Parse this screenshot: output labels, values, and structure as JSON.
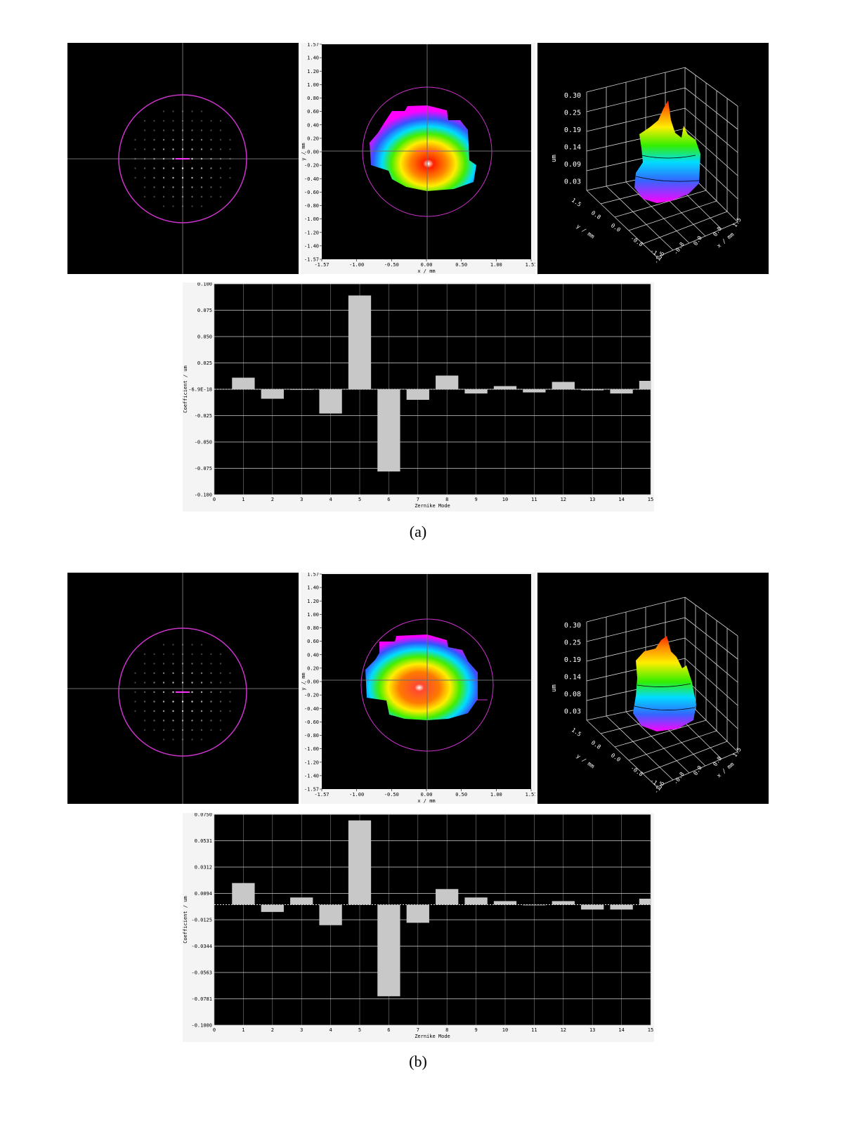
{
  "figure_labels": [
    "(a)",
    "(b)"
  ],
  "colors": {
    "pupil_circle": "#cc33cc",
    "crosshair": "#6e6e6e",
    "bar_fill": "#c8c8c8",
    "plot_bg": "#000000",
    "grid": "#bdbdbd"
  },
  "intensity_map": {
    "x_label": "x / mm",
    "y_label": "y / mm",
    "x_ticks": [
      "-1.57",
      "-1.00",
      "-0.50",
      "0.00",
      "0.50",
      "1.00",
      "1.57"
    ],
    "y_ticks": [
      "1.57",
      "1.40",
      "1.20",
      "1.00",
      "0.80",
      "0.60",
      "0.40",
      "0.20",
      "-0.00",
      "-0.20",
      "-0.40",
      "-0.60",
      "-0.80",
      "-1.00",
      "-1.20",
      "-1.40",
      "-1.57"
    ]
  },
  "surface_3d": {
    "z_label": "um",
    "y_label": "y / mm",
    "x_label": "x / mm",
    "y_ticks": [
      "1.5",
      "0.8",
      "0.0",
      "-0.8",
      "-1.5"
    ],
    "x_ticks": [
      "-1.5",
      "-0.8",
      "0.0",
      "0.8",
      "1.5"
    ],
    "z_ticks_a": [
      "0.30",
      "0.25",
      "0.19",
      "0.14",
      "0.09",
      "0.03"
    ],
    "z_ticks_b": [
      "0.30",
      "0.25",
      "0.19",
      "0.14",
      "0.08",
      "0.03"
    ]
  },
  "chart_data": [
    {
      "type": "bar",
      "panel": "(a)",
      "xlabel": "Zernike Mode",
      "ylabel": "Coefficient / um",
      "categories": [
        "1",
        "2",
        "3",
        "4",
        "5",
        "6",
        "7",
        "8",
        "9",
        "10",
        "11",
        "12",
        "13",
        "14",
        "15"
      ],
      "x_ticks": [
        "0",
        "1",
        "2",
        "3",
        "4",
        "5",
        "6",
        "7",
        "8",
        "9",
        "10",
        "11",
        "12",
        "13",
        "14",
        "15"
      ],
      "y_ticks": [
        "0.100",
        "0.075",
        "0.050",
        "0.025",
        "-6.9E-18",
        "-0.025",
        "-0.050",
        "-0.075",
        "-0.100"
      ],
      "ylim": [
        -0.1,
        0.1
      ],
      "values": [
        0.011,
        -0.009,
        0.0,
        -0.023,
        0.089,
        -0.078,
        -0.01,
        0.013,
        -0.004,
        0.003,
        -0.003,
        0.007,
        -0.001,
        -0.004,
        0.008
      ],
      "grid": true
    },
    {
      "type": "bar",
      "panel": "(b)",
      "xlabel": "Zernike Mode",
      "ylabel": "Coefficient / um",
      "categories": [
        "1",
        "2",
        "3",
        "4",
        "5",
        "6",
        "7",
        "8",
        "9",
        "10",
        "11",
        "12",
        "13",
        "14",
        "15"
      ],
      "x_ticks": [
        "0",
        "1",
        "2",
        "3",
        "4",
        "5",
        "6",
        "7",
        "8",
        "9",
        "10",
        "11",
        "12",
        "13",
        "14",
        "15"
      ],
      "y_ticks": [
        "0.0750",
        "0.0531",
        "0.0312",
        "0.0094",
        "-0.0125",
        "-0.0344",
        "-0.0563",
        "-0.0781",
        "-0.1000"
      ],
      "ylim": [
        -0.1,
        0.075
      ],
      "values": [
        0.018,
        -0.006,
        0.006,
        -0.017,
        0.07,
        -0.076,
        -0.015,
        0.013,
        0.006,
        0.003,
        -0.0005,
        0.003,
        -0.004,
        -0.004,
        0.005
      ],
      "grid": true
    }
  ]
}
